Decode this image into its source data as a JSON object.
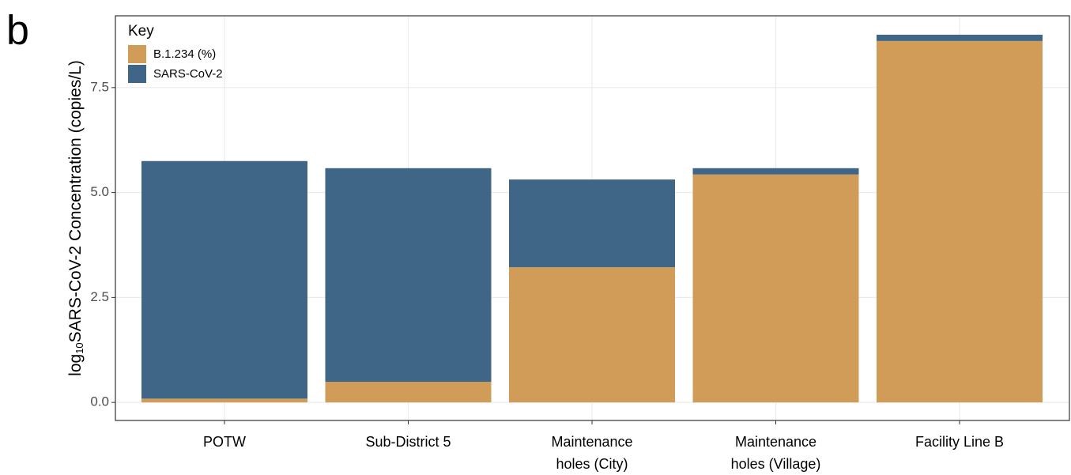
{
  "chart_data": {
    "type": "stacked_bar",
    "panel_label": "b",
    "y_label": {
      "prefix": "log",
      "subscript": "10",
      "text": "SARS-CoV-2 Concentration (copies/L)"
    },
    "legend_title": "Key",
    "legend_position": "top-left",
    "categories": [
      [
        "POTW"
      ],
      [
        "Sub-District 5"
      ],
      [
        "Maintenance",
        "holes (City)"
      ],
      [
        "Maintenance",
        "holes (Village)"
      ],
      [
        "Facility Line B"
      ]
    ],
    "series": [
      {
        "name": "B.1.234 (%)",
        "color": "#d09c58",
        "values": [
          0.09,
          0.49,
          3.22,
          5.43,
          8.61
        ]
      },
      {
        "name": "SARS-CoV-2",
        "color": "#3f6587",
        "values": [
          5.66,
          5.09,
          2.09,
          0.15,
          0.15
        ]
      }
    ],
    "ylim": [
      -0.43,
      9.21
    ],
    "yticks": [
      {
        "value": 0,
        "label": "0.0"
      },
      2.5,
      {
        "value": 5,
        "label": "5.0"
      },
      7.5
    ],
    "grid": true
  }
}
